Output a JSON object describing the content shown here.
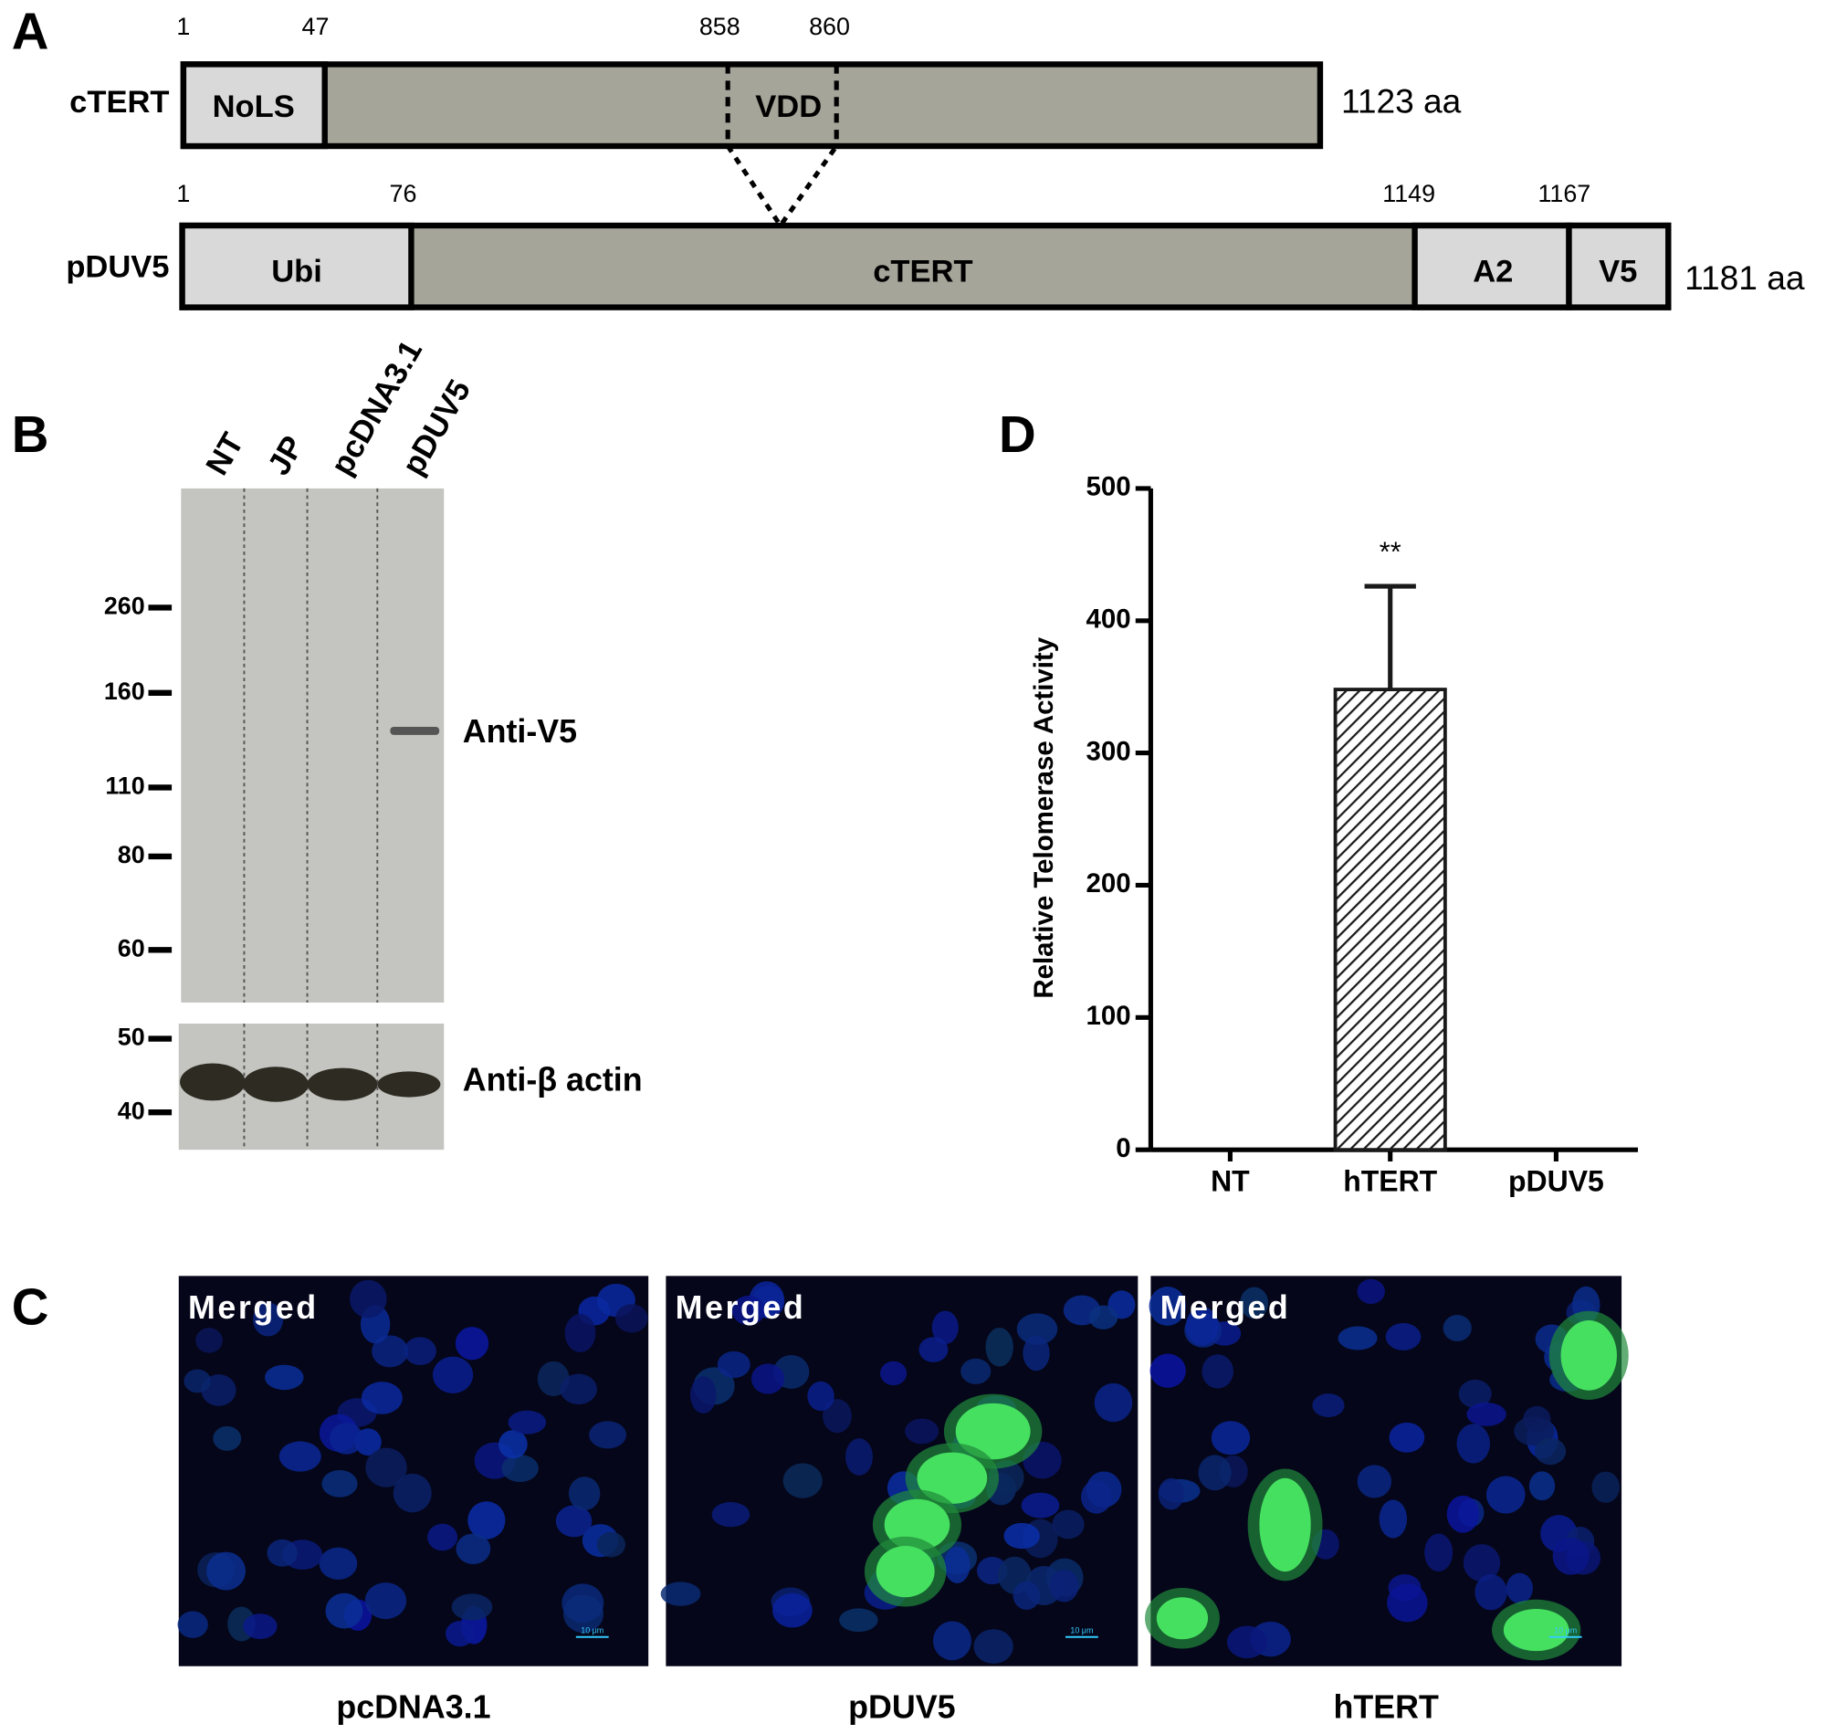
{
  "panel_a": {
    "label": "A",
    "ctert": {
      "name": "cTERT",
      "positions": [
        1,
        47,
        858,
        860
      ],
      "domains": [
        "NoLS",
        "VDD"
      ],
      "length": "1123 aa"
    },
    "pduv5": {
      "name": "pDUV5",
      "positions": [
        1,
        76,
        1149,
        1167
      ],
      "domains": [
        "Ubi",
        "cTERT",
        "A2",
        "V5"
      ],
      "length": "1181 aa"
    }
  },
  "panel_b": {
    "label": "B",
    "lanes": [
      "NT",
      "JP",
      "pcDNA3.1",
      "pDUV5"
    ],
    "upper_markers": [
      260,
      160,
      110,
      80,
      60
    ],
    "lower_markers": [
      50,
      40
    ],
    "upper_antibody": "Anti-V5",
    "lower_antibody": "Anti-β actin"
  },
  "panel_c": {
    "label": "C",
    "overlay": "Merged",
    "scale_bar": "10 μm",
    "captions": [
      "pcDNA3.1",
      "pDUV5",
      "hTERT"
    ]
  },
  "chart_data": {
    "label": "D",
    "type": "bar",
    "ylabel": "Relative Telomerase Activity",
    "categories": [
      "NT",
      "hTERT",
      "pDUV5"
    ],
    "values": [
      0,
      348,
      0
    ],
    "errors": [
      null,
      78,
      null
    ],
    "annotations": [
      null,
      "**",
      null
    ],
    "ylim": [
      0,
      500
    ],
    "yticks": [
      0,
      100,
      200,
      300,
      400,
      500
    ],
    "color": "#1a1a1a"
  }
}
